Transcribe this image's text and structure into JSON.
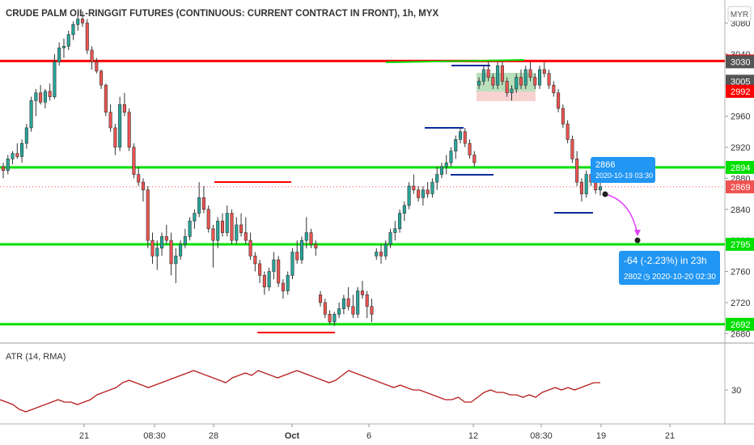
{
  "title": "CRUDE PALM OIL-RINGGIT FUTURES (CONTINUOUS: CURRENT CONTRACT IN FRONT), 1h, MYX",
  "currency": "MYR",
  "colors": {
    "up": "#26a69a",
    "down": "#ef5350",
    "wick": "#333333",
    "red_line": "#ff0000",
    "green_line": "#00e000",
    "blue_line": "#0d2c9c",
    "atr": "#b71c1c",
    "tooltip": "#2196f3",
    "projection": "#e040fb"
  },
  "chart_data": [
    {
      "type": "candlestick",
      "title": "CRUDE PALM OIL-RINGGIT FUTURES (CONTINUOUS: CURRENT CONTRACT IN FRONT), 1h, MYX",
      "y_range": [
        2670,
        3115
      ],
      "y_ticks": [
        2680,
        2720,
        2760,
        2800,
        2840,
        2880,
        2920,
        2960,
        3000,
        3040,
        3080
      ],
      "x_ticks": [
        "21",
        "08:30",
        "28",
        "Oct",
        "6",
        "12",
        "08:30",
        "19",
        "21"
      ],
      "horizontal_levels": [
        {
          "value": 3031,
          "label": "3031",
          "color": "#ff0000"
        },
        {
          "value": 2894,
          "label": "2894",
          "color": "#00e000"
        },
        {
          "value": 2795,
          "label": "2795",
          "color": "#00e000"
        },
        {
          "value": 2692,
          "label": "2692",
          "color": "#00e000"
        }
      ],
      "right_axis_badges": [
        {
          "value": 3030,
          "label": "3030",
          "color": "#555555"
        },
        {
          "value": 3005,
          "label": "3005",
          "color": "#555555"
        },
        {
          "value": 2992,
          "label": "2992",
          "color": "#ff0000"
        },
        {
          "value": 2869,
          "label": "2869",
          "color": "#ef5350"
        }
      ],
      "last_price": 2869,
      "candles": [
        [
          2895,
          2900,
          2880,
          2890
        ],
        [
          2890,
          2910,
          2885,
          2905
        ],
        [
          2905,
          2915,
          2898,
          2912
        ],
        [
          2912,
          2925,
          2905,
          2908
        ],
        [
          2908,
          2930,
          2900,
          2925
        ],
        [
          2925,
          2950,
          2918,
          2945
        ],
        [
          2945,
          2985,
          2940,
          2980
        ],
        [
          2980,
          2995,
          2960,
          2990
        ],
        [
          2990,
          3000,
          2975,
          2978
        ],
        [
          2978,
          2995,
          2970,
          2992
        ],
        [
          2992,
          3002,
          2980,
          2985
        ],
        [
          2985,
          3040,
          2982,
          3030
        ],
        [
          3030,
          3055,
          3025,
          3048
        ],
        [
          3048,
          3060,
          3035,
          3050
        ],
        [
          3050,
          3070,
          3045,
          3065
        ],
        [
          3065,
          3082,
          3058,
          3078
        ],
        [
          3078,
          3090,
          3070,
          3085
        ],
        [
          3085,
          3095,
          3075,
          3080
        ],
        [
          3080,
          3085,
          3040,
          3045
        ],
        [
          3045,
          3050,
          3020,
          3030
        ],
        [
          3030,
          3035,
          3015,
          3018
        ],
        [
          3018,
          3020,
          2995,
          3000
        ],
        [
          3000,
          3002,
          2960,
          2965
        ],
        [
          2965,
          2975,
          2940,
          2945
        ],
        [
          2945,
          2950,
          2910,
          2920
        ],
        [
          2920,
          2985,
          2915,
          2975
        ],
        [
          2975,
          2990,
          2960,
          2965
        ],
        [
          2965,
          2970,
          2915,
          2920
        ],
        [
          2920,
          2925,
          2880,
          2885
        ],
        [
          2885,
          2895,
          2870,
          2875
        ],
        [
          2875,
          2880,
          2850,
          2865
        ],
        [
          2865,
          2870,
          2790,
          2800
        ],
        [
          2800,
          2810,
          2770,
          2780
        ],
        [
          2780,
          2800,
          2762,
          2790
        ],
        [
          2790,
          2810,
          2780,
          2805
        ],
        [
          2805,
          2820,
          2795,
          2800
        ],
        [
          2800,
          2810,
          2755,
          2770
        ],
        [
          2770,
          2790,
          2745,
          2780
        ],
        [
          2780,
          2800,
          2775,
          2795
        ],
        [
          2795,
          2815,
          2790,
          2805
        ],
        [
          2805,
          2830,
          2800,
          2825
        ],
        [
          2825,
          2840,
          2815,
          2835
        ],
        [
          2835,
          2875,
          2830,
          2855
        ],
        [
          2855,
          2870,
          2835,
          2840
        ],
        [
          2840,
          2845,
          2810,
          2815
        ],
        [
          2815,
          2820,
          2765,
          2800
        ],
        [
          2800,
          2830,
          2790,
          2825
        ],
        [
          2825,
          2835,
          2805,
          2810
        ],
        [
          2810,
          2845,
          2805,
          2835
        ],
        [
          2835,
          2840,
          2795,
          2800
        ],
        [
          2800,
          2830,
          2795,
          2820
        ],
        [
          2820,
          2835,
          2805,
          2810
        ],
        [
          2810,
          2830,
          2795,
          2800
        ],
        [
          2800,
          2810,
          2775,
          2780
        ],
        [
          2780,
          2785,
          2760,
          2770
        ],
        [
          2770,
          2775,
          2745,
          2755
        ],
        [
          2755,
          2760,
          2730,
          2740
        ],
        [
          2740,
          2765,
          2735,
          2760
        ],
        [
          2760,
          2785,
          2750,
          2775
        ],
        [
          2775,
          2780,
          2740,
          2745
        ],
        [
          2745,
          2750,
          2725,
          2735
        ],
        [
          2735,
          2760,
          2730,
          2755
        ],
        [
          2755,
          2790,
          2750,
          2785
        ],
        [
          2785,
          2800,
          2770,
          2775
        ],
        [
          2775,
          2805,
          2770,
          2800
        ],
        [
          2800,
          2830,
          2790,
          2810
        ],
        [
          2810,
          2815,
          2790,
          2795
        ],
        [
          2795,
          2800,
          2780,
          2790
        ],
        [
          2730,
          2735,
          2715,
          2720
        ],
        [
          2720,
          2725,
          2700,
          2705
        ],
        [
          2705,
          2710,
          2692,
          2695
        ],
        [
          2695,
          2708,
          2690,
          2705
        ],
        [
          2705,
          2720,
          2700,
          2712
        ],
        [
          2712,
          2730,
          2705,
          2725
        ],
        [
          2725,
          2740,
          2710,
          2715
        ],
        [
          2715,
          2730,
          2700,
          2705
        ],
        [
          2705,
          2740,
          2700,
          2735
        ],
        [
          2735,
          2748,
          2725,
          2730
        ],
        [
          2730,
          2735,
          2700,
          2715
        ],
        [
          2715,
          2725,
          2695,
          2705
        ],
        [
          2780,
          2790,
          2775,
          2785
        ],
        [
          2785,
          2795,
          2770,
          2780
        ],
        [
          2780,
          2800,
          2775,
          2795
        ],
        [
          2795,
          2815,
          2790,
          2810
        ],
        [
          2810,
          2825,
          2800,
          2815
        ],
        [
          2815,
          2840,
          2810,
          2835
        ],
        [
          2835,
          2850,
          2825,
          2845
        ],
        [
          2845,
          2875,
          2840,
          2870
        ],
        [
          2870,
          2885,
          2860,
          2865
        ],
        [
          2865,
          2870,
          2850,
          2855
        ],
        [
          2855,
          2870,
          2845,
          2865
        ],
        [
          2865,
          2875,
          2855,
          2860
        ],
        [
          2860,
          2880,
          2855,
          2875
        ],
        [
          2875,
          2895,
          2865,
          2885
        ],
        [
          2885,
          2900,
          2880,
          2895
        ],
        [
          2895,
          2910,
          2885,
          2900
        ],
        [
          2900,
          2920,
          2895,
          2915
        ],
        [
          2915,
          2935,
          2905,
          2930
        ],
        [
          2930,
          2945,
          2925,
          2940
        ],
        [
          2940,
          2945,
          2920,
          2925
        ],
        [
          2925,
          2930,
          2905,
          2910
        ],
        [
          2910,
          2915,
          2895,
          2900
        ],
        [
          3000,
          3010,
          2995,
          3005
        ],
        [
          3005,
          3025,
          3000,
          3020
        ],
        [
          3020,
          3030,
          3005,
          3010
        ],
        [
          3010,
          3015,
          2995,
          3000
        ],
        [
          3000,
          3030,
          2995,
          3025
        ],
        [
          3025,
          3030,
          3000,
          3005
        ],
        [
          3005,
          3010,
          2985,
          2990
        ],
        [
          2990,
          3000,
          2980,
          2995
        ],
        [
          2995,
          3015,
          2990,
          3010
        ],
        [
          3010,
          3020,
          2995,
          3000
        ],
        [
          3000,
          3025,
          2995,
          3020
        ],
        [
          3020,
          3030,
          3005,
          3010
        ],
        [
          3010,
          3015,
          2995,
          3000
        ],
        [
          3000,
          3025,
          2995,
          3020
        ],
        [
          3020,
          3030,
          3010,
          3015
        ],
        [
          3015,
          3020,
          2995,
          3000
        ],
        [
          3000,
          3005,
          2985,
          2990
        ],
        [
          2990,
          2995,
          2965,
          2970
        ],
        [
          2970,
          2975,
          2945,
          2950
        ],
        [
          2950,
          2955,
          2925,
          2930
        ],
        [
          2930,
          2935,
          2900,
          2905
        ],
        [
          2905,
          2915,
          2870,
          2875
        ],
        [
          2875,
          2880,
          2850,
          2860
        ],
        [
          2860,
          2890,
          2855,
          2885
        ],
        [
          2885,
          2895,
          2870,
          2875
        ],
        [
          2875,
          2880,
          2860,
          2865
        ],
        [
          2865,
          2875,
          2858,
          2869
        ]
      ]
    },
    {
      "type": "line",
      "title": "ATR (14, RMA)",
      "y_ticks": [
        30
      ],
      "y_range": [
        18,
        40
      ],
      "series": [
        {
          "values": [
            26,
            25,
            24,
            22,
            21,
            22,
            23,
            24,
            25,
            26,
            25,
            25,
            24,
            25,
            26,
            28,
            29,
            30,
            31,
            33,
            34,
            33,
            32,
            31,
            32,
            33,
            34,
            35,
            36,
            37,
            38,
            37,
            36,
            35,
            34,
            33,
            35,
            36,
            37,
            36,
            38,
            37,
            36,
            35,
            36,
            37,
            38,
            37,
            36,
            35,
            34,
            33,
            34,
            36,
            38,
            37,
            36,
            35,
            34,
            33,
            32,
            31,
            32,
            31,
            30,
            30,
            29,
            28,
            27,
            26,
            26,
            27,
            25,
            25,
            27,
            29,
            30,
            29,
            29,
            28,
            28,
            27,
            28,
            27,
            29,
            30,
            31,
            30,
            31,
            30,
            31,
            32,
            33,
            33
          ]
        }
      ]
    }
  ],
  "annotations": {
    "tooltip_price": "2866",
    "tooltip_time": "2020-10-19 03:30",
    "projection_change": "-64 (-2.23%) in 23h",
    "projection_target": "2802",
    "projection_time": "2020-10-20  02:30"
  }
}
